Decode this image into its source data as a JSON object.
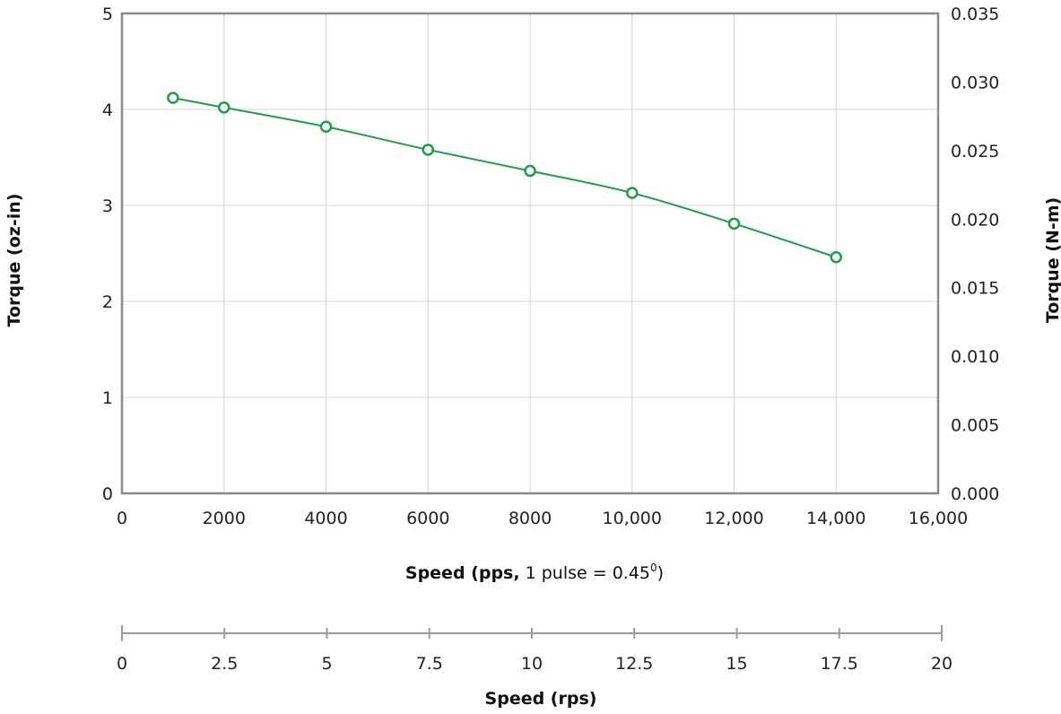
{
  "chart_data": {
    "type": "line",
    "x": [
      1000,
      2000,
      4000,
      6000,
      8000,
      10000,
      12000,
      14000
    ],
    "series": [
      {
        "values": [
          4.12,
          4.02,
          3.82,
          3.58,
          3.36,
          3.13,
          2.81,
          2.46
        ],
        "color": "#1e9e4a"
      }
    ],
    "xlabel_bold": "Speed (pps,",
    "xlabel_rest": " 1 pulse = 0.45",
    "xlabel_sup": "0",
    "xlabel_end": ")",
    "ylabel": "Torque (oz-in)",
    "y2label": "Torque (N-m)",
    "xlim": [
      0,
      16000
    ],
    "ylim": [
      0,
      5
    ],
    "y2lim": [
      0,
      0.035
    ],
    "x_ticks": [
      {
        "value": 0,
        "label": "0"
      },
      {
        "value": 2000,
        "label": "2000"
      },
      {
        "value": 4000,
        "label": "4000"
      },
      {
        "value": 6000,
        "label": "6000"
      },
      {
        "value": 8000,
        "label": "8000"
      },
      {
        "value": 10000,
        "label": "10,000"
      },
      {
        "value": 12000,
        "label": "12,000"
      },
      {
        "value": 14000,
        "label": "14,000"
      },
      {
        "value": 16000,
        "label": "16,000"
      }
    ],
    "y_ticks": [
      {
        "value": 0,
        "label": "0"
      },
      {
        "value": 1,
        "label": "1"
      },
      {
        "value": 2,
        "label": "2"
      },
      {
        "value": 3,
        "label": "3"
      },
      {
        "value": 4,
        "label": "4"
      },
      {
        "value": 5,
        "label": "5"
      }
    ],
    "y2_ticks": [
      {
        "value": 0,
        "label": "0.000"
      },
      {
        "value": 0.005,
        "label": "0.005"
      },
      {
        "value": 0.01,
        "label": "0.010"
      },
      {
        "value": 0.015,
        "label": "0.015"
      },
      {
        "value": 0.02,
        "label": "0.020"
      },
      {
        "value": 0.025,
        "label": "0.025"
      },
      {
        "value": 0.03,
        "label": "0.030"
      },
      {
        "value": 0.035,
        "label": "0.035"
      }
    ],
    "rps_axis": {
      "label": "Speed (rps)",
      "lim": [
        0,
        20
      ],
      "ticks": [
        {
          "value": 0,
          "label": "0"
        },
        {
          "value": 2.5,
          "label": "2.5"
        },
        {
          "value": 5,
          "label": "5"
        },
        {
          "value": 7.5,
          "label": "7.5"
        },
        {
          "value": 10,
          "label": "10"
        },
        {
          "value": 12.5,
          "label": "12.5"
        },
        {
          "value": 15,
          "label": "15"
        },
        {
          "value": 17.5,
          "label": "17.5"
        },
        {
          "value": 20,
          "label": "20"
        }
      ]
    },
    "grid": true
  }
}
